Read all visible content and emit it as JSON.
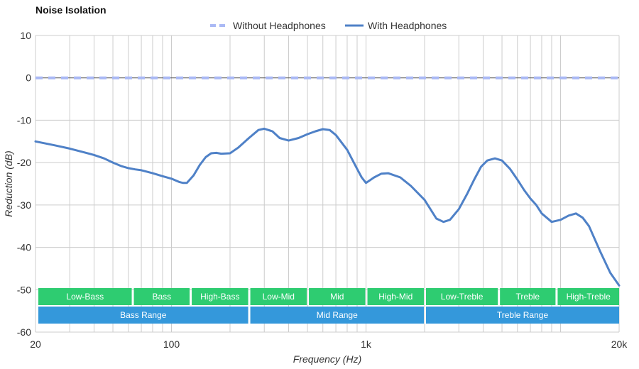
{
  "chart_data": {
    "type": "line",
    "title": "Noise Isolation",
    "xlabel": "Frequency (Hz)",
    "ylabel": "Reduction (dB)",
    "x_scale": "log",
    "xlim": [
      20,
      20000
    ],
    "ylim": [
      -60,
      10
    ],
    "x_ticks": [
      {
        "value": 20,
        "label": "20"
      },
      {
        "value": 100,
        "label": "100"
      },
      {
        "value": 1000,
        "label": "1k"
      },
      {
        "value": 20000,
        "label": "20k"
      }
    ],
    "y_ticks": [
      10,
      0,
      -10,
      -20,
      -30,
      -40,
      -50,
      -60
    ],
    "grid": true,
    "legend_position": "top-center",
    "series": [
      {
        "name": "Without Headphones",
        "style": "dashed",
        "color": "#aab9f5",
        "x": [
          20,
          20000
        ],
        "y": [
          0,
          0
        ]
      },
      {
        "name": "With Headphones",
        "style": "solid",
        "color": "#4f81c7",
        "x": [
          20,
          25,
          30,
          35,
          40,
          45,
          50,
          55,
          60,
          65,
          70,
          80,
          90,
          100,
          110,
          115,
          120,
          130,
          140,
          150,
          160,
          170,
          180,
          200,
          220,
          250,
          280,
          300,
          330,
          360,
          400,
          450,
          500,
          550,
          600,
          650,
          700,
          800,
          900,
          950,
          1000,
          1100,
          1200,
          1300,
          1500,
          1700,
          2000,
          2300,
          2500,
          2700,
          3000,
          3300,
          3600,
          3900,
          4200,
          4600,
          5000,
          5500,
          6000,
          6500,
          7000,
          7500,
          8000,
          9000,
          10000,
          11000,
          12000,
          13000,
          14000,
          16000,
          18000,
          20000
        ],
        "y": [
          -15,
          -15.9,
          -16.7,
          -17.5,
          -18.2,
          -19,
          -20,
          -20.8,
          -21.3,
          -21.6,
          -21.8,
          -22.5,
          -23.2,
          -23.8,
          -24.6,
          -24.8,
          -24.8,
          -23,
          -20.5,
          -18.7,
          -17.8,
          -17.7,
          -17.9,
          -17.8,
          -16.5,
          -14.2,
          -12.3,
          -12,
          -12.6,
          -14.2,
          -14.8,
          -14.2,
          -13.3,
          -12.6,
          -12.1,
          -12.3,
          -13.5,
          -17,
          -21.5,
          -23.5,
          -24.8,
          -23.5,
          -22.6,
          -22.5,
          -23.5,
          -25.5,
          -28.8,
          -33.2,
          -34,
          -33.5,
          -31,
          -27.5,
          -24,
          -21,
          -19.5,
          -19,
          -19.5,
          -21.5,
          -24,
          -26.5,
          -28.5,
          -30,
          -32,
          -34,
          -33.5,
          -32.5,
          -32,
          -33,
          -35,
          -41,
          -46,
          -49
        ]
      }
    ],
    "bands_row1": [
      {
        "label": "Low-Bass",
        "from": 20,
        "to": 63
      },
      {
        "label": "Bass",
        "from": 63,
        "to": 125
      },
      {
        "label": "High-Bass",
        "from": 125,
        "to": 250
      },
      {
        "label": "Low-Mid",
        "from": 250,
        "to": 500
      },
      {
        "label": "Mid",
        "from": 500,
        "to": 1000
      },
      {
        "label": "High-Mid",
        "from": 1000,
        "to": 2000
      },
      {
        "label": "Low-Treble",
        "from": 2000,
        "to": 4800
      },
      {
        "label": "Treble",
        "from": 4800,
        "to": 9500
      },
      {
        "label": "High-Treble",
        "from": 9500,
        "to": 20000
      }
    ],
    "bands_row2": [
      {
        "label": "Bass Range",
        "from": 20,
        "to": 250
      },
      {
        "label": "Mid Range",
        "from": 250,
        "to": 2000
      },
      {
        "label": "Treble Range",
        "from": 2000,
        "to": 20000
      }
    ],
    "band_colors": {
      "row1": "#2ecc71",
      "row2": "#3498db"
    }
  }
}
